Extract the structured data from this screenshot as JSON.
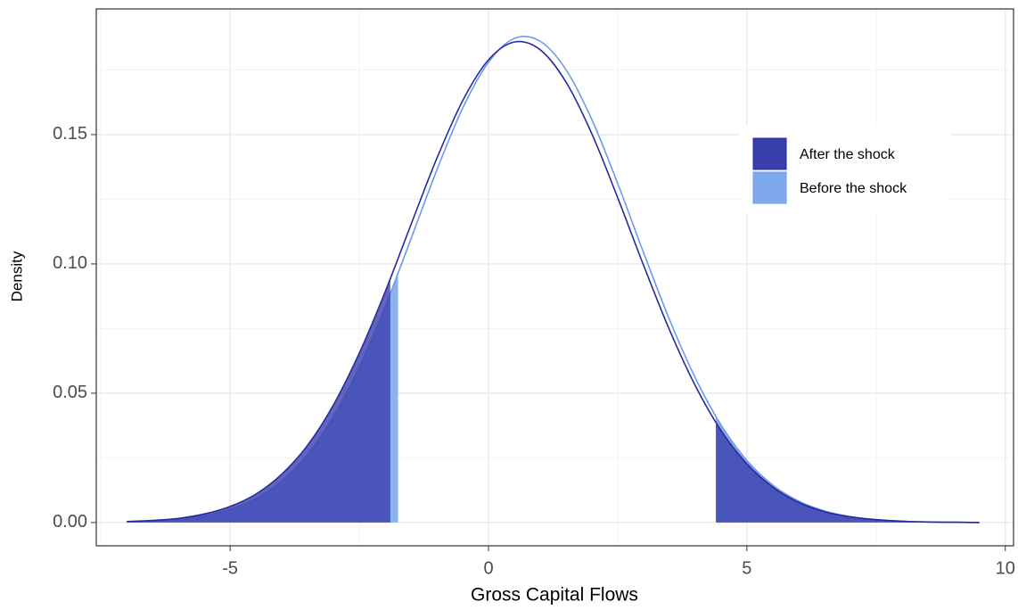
{
  "chart_data": {
    "type": "density",
    "x_label": "Gross Capital Flows",
    "y_label": "Density",
    "x": [
      -7,
      -6.5,
      -6,
      -5.5,
      -5,
      -4.5,
      -4,
      -3.5,
      -3,
      -2.5,
      -2,
      -1.5,
      -1,
      -0.5,
      0,
      0.5,
      1,
      1.5,
      2,
      2.5,
      3,
      3.5,
      4,
      4.5,
      5,
      5.5,
      6,
      6.5,
      7,
      7.5,
      8,
      8.5,
      9,
      9.5
    ],
    "series": [
      {
        "name": "Before the shock",
        "color": "#7ea9ee",
        "line_color": "#6d9be8",
        "shade_below": -1.75,
        "shade_above": 4.4,
        "values": [
          0.0003,
          0.0006,
          0.0013,
          0.0026,
          0.0051,
          0.0093,
          0.0161,
          0.0264,
          0.041,
          0.0602,
          0.0835,
          0.1097,
          0.1363,
          0.1602,
          0.178,
          0.1872,
          0.1861,
          0.1751,
          0.1558,
          0.1311,
          0.1044,
          0.0786,
          0.056,
          0.0377,
          0.024,
          0.0145,
          0.0083,
          0.0045,
          0.0023,
          0.0011,
          0.0005,
          0.0002,
          0.0001,
          0
        ]
      },
      {
        "name": "After the shock",
        "color": "#3a3fae",
        "line_color": "#262a9c",
        "shade_below": -1.9,
        "shade_above": 4.4,
        "values": [
          0.0004,
          0.0008,
          0.0016,
          0.0033,
          0.0062,
          0.011,
          0.0187,
          0.0299,
          0.0455,
          0.0655,
          0.0892,
          0.1152,
          0.1408,
          0.1631,
          0.1789,
          0.1858,
          0.1828,
          0.1703,
          0.1503,
          0.1256,
          0.0995,
          0.0746,
          0.053,
          0.0356,
          0.0227,
          0.0137,
          0.0078,
          0.0042,
          0.0022,
          0.0011,
          0.0005,
          0.0002,
          0.0001,
          0
        ]
      }
    ],
    "xlim": [
      -7.59,
      10.16
    ],
    "ylim": [
      -0.009,
      0.1986
    ],
    "xticks": [
      -5,
      0,
      5,
      10
    ],
    "yticks": [
      {
        "value": 0,
        "label": "0.00"
      },
      {
        "value": 0.05,
        "label": "0.05"
      },
      {
        "value": 0.1,
        "label": "0.10"
      },
      {
        "value": 0.15,
        "label": "0.15"
      }
    ],
    "grid": true,
    "minor_grid": true,
    "legend_order": [
      1,
      0
    ]
  }
}
